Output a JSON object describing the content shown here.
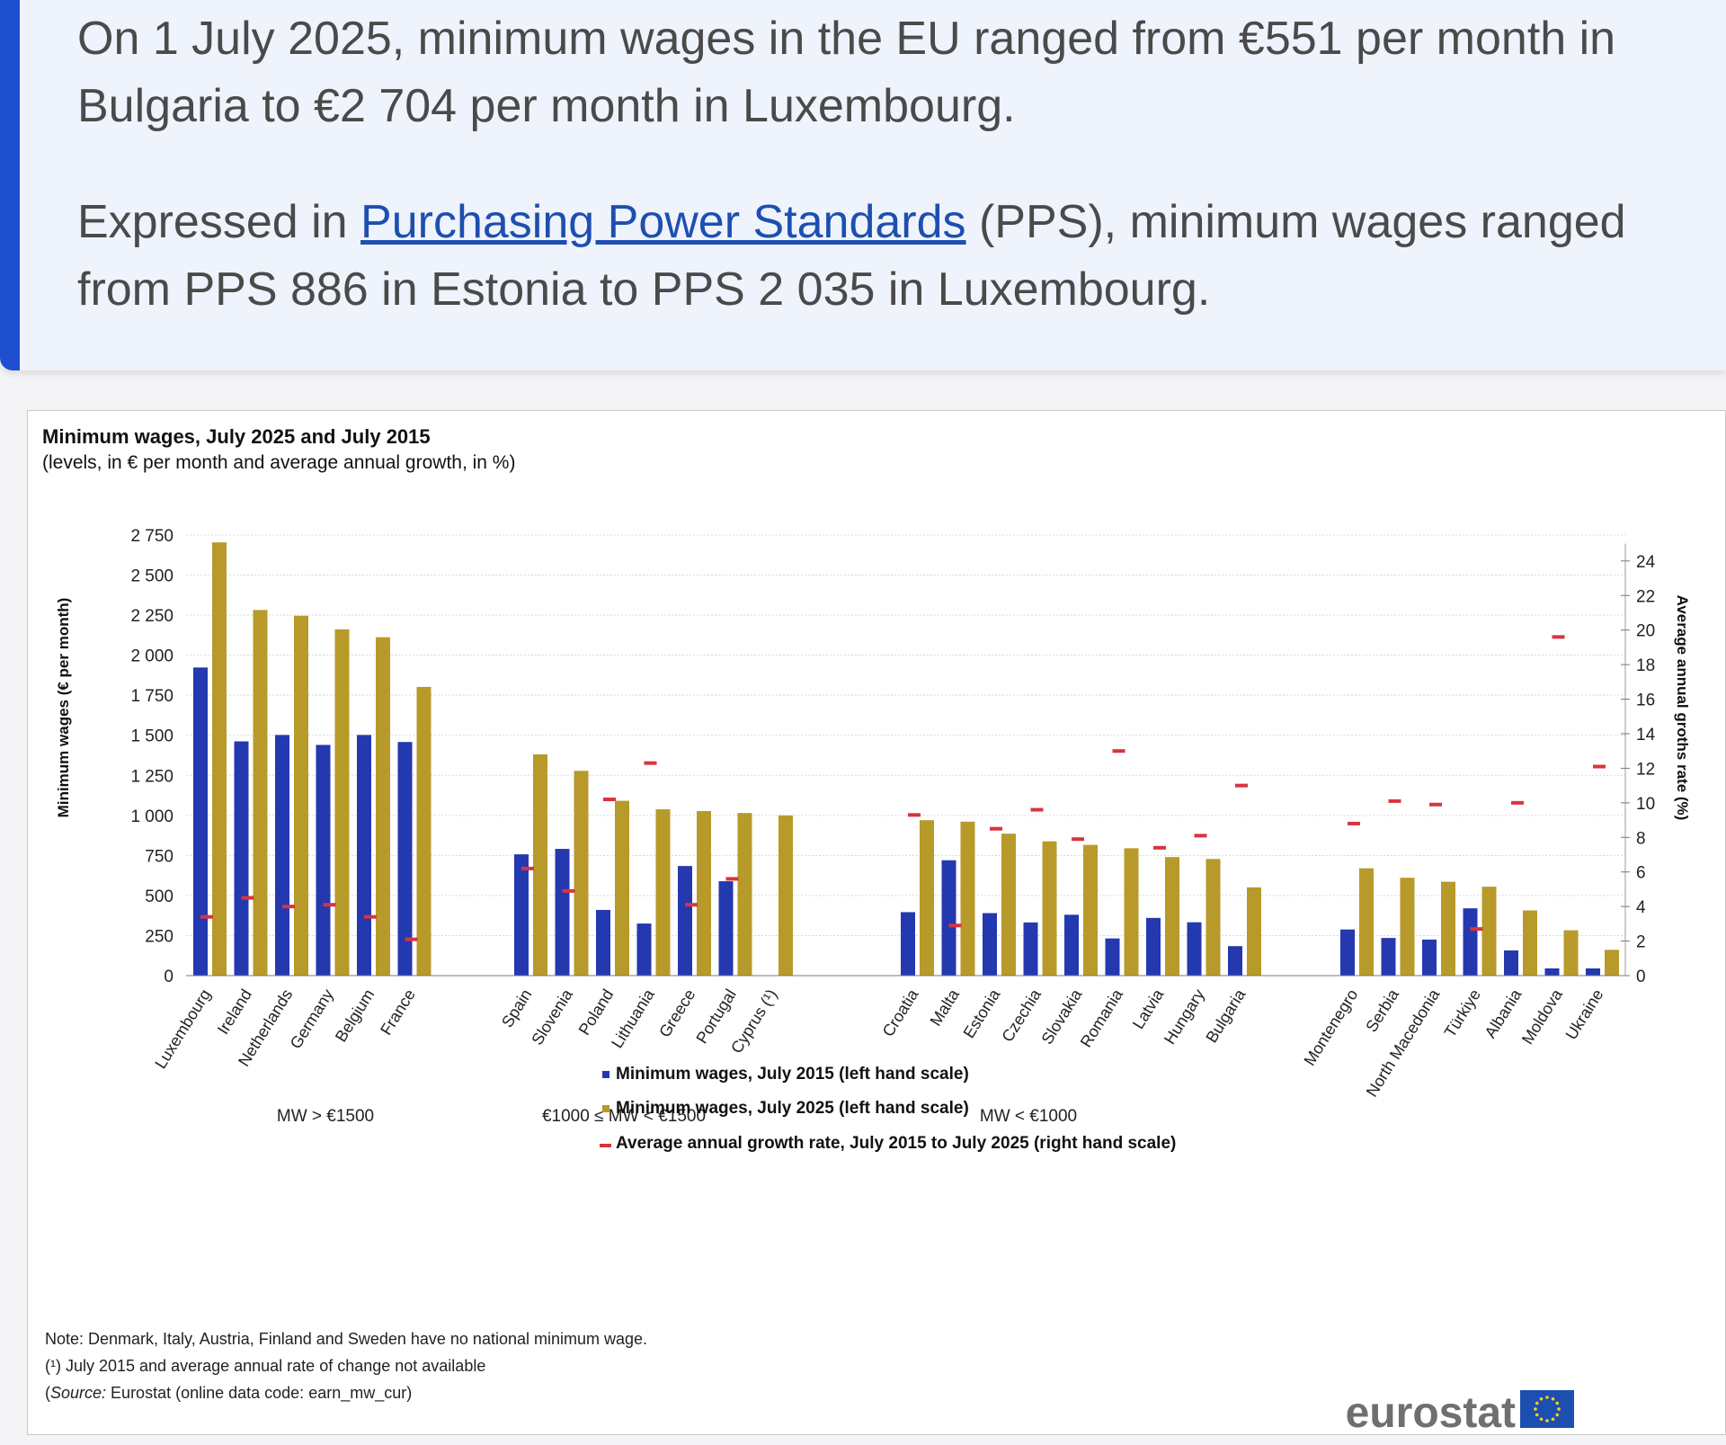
{
  "callout": {
    "p1": "On 1 July 2025, minimum wages in the EU ranged from €551 per month in Bulgaria to €2 704 per month in Luxembourg.",
    "p2_before": "Expressed in ",
    "p2_link": "Purchasing Power Standards",
    "p2_after": " (PPS), minimum wages ranged from PPS 886 in Estonia to PPS 2 035 in Luxembourg."
  },
  "chart_data": {
    "type": "bar",
    "title": "Minimum wages, July 2025 and July 2015",
    "subtitle": "(levels, in € per month and average annual growth, in %)",
    "ylabel": "Minimum wages (€ per month)",
    "y2label": "Average annual groths rate (%)",
    "ylim": [
      0,
      2750
    ],
    "y2lim": [
      0,
      25.5
    ],
    "yticks": [
      "0",
      "250",
      "500",
      "750",
      "1 000",
      "1 250",
      "1 500",
      "1 750",
      "2 000",
      "2 250",
      "2 500",
      "2 750"
    ],
    "yticks_values": [
      0,
      250,
      500,
      750,
      1000,
      1250,
      1500,
      1750,
      2000,
      2250,
      2500,
      2750
    ],
    "y2ticks": [
      0,
      2,
      4,
      6,
      8,
      10,
      12,
      14,
      16,
      18,
      20,
      22,
      24
    ],
    "grid": true,
    "legend_placement": "bottom-center",
    "colors": {
      "mw2015": "#2438b0",
      "mw2025": "#b79a2a",
      "growth": "#d8343f"
    },
    "groups": [
      {
        "label": "MW > €1500",
        "start": 0,
        "count": 6
      },
      {
        "label": "€1000 ≤ MW < €1500",
        "start": 6,
        "count": 7
      },
      {
        "label": "MW < €1000",
        "start": 13,
        "count": 9
      },
      {
        "label": "",
        "start": 22,
        "count": 7
      }
    ],
    "categories": [
      "Luxembourg",
      "Ireland",
      "Netherlands",
      "Germany",
      "Belgium",
      "France",
      "Spain",
      "Slovenia",
      "Poland",
      "Lithuania",
      "Greece",
      "Portugal",
      "Cyprus (¹)",
      "Croatia",
      "Malta",
      "Estonia",
      "Czechia",
      "Slovakia",
      "Romania",
      "Latvia",
      "Hungary",
      "Bulgaria",
      "Montenegro",
      "Serbia",
      "North Macedonia",
      "Türkiye",
      "Albania",
      "Moldova",
      "Ukraine"
    ],
    "series": [
      {
        "name": "Minimum wages, July 2015 (left hand scale)",
        "values": [
          1923,
          1462,
          1502,
          1440,
          1502,
          1458,
          757,
          791,
          410,
          325,
          684,
          589,
          null,
          396,
          720,
          390,
          332,
          380,
          232,
          360,
          333,
          184,
          288,
          235,
          225,
          420,
          157,
          45,
          45
        ]
      },
      {
        "name": "Minimum wages, July 2025 (left hand scale)",
        "values": [
          2704,
          2282,
          2246,
          2161,
          2112,
          1802,
          1381,
          1278,
          1091,
          1038,
          1027,
          1015,
          1000,
          970,
          961,
          886,
          838,
          816,
          795,
          740,
          728,
          551,
          670,
          611,
          586,
          555,
          407,
          283,
          161
        ]
      },
      {
        "name": "Average annual growth rate, July 2015 to July 2025 (right hand scale)",
        "values": [
          3.4,
          4.5,
          4.0,
          4.1,
          3.4,
          2.1,
          6.2,
          4.9,
          10.2,
          12.3,
          4.1,
          5.6,
          null,
          9.3,
          2.9,
          8.5,
          9.6,
          7.9,
          13.0,
          7.4,
          8.1,
          11.0,
          8.8,
          10.1,
          9.9,
          2.7,
          10.0,
          19.6,
          12.1
        ]
      }
    ]
  },
  "notes": {
    "line1": "Note: Denmark, Italy,  Austria, Finland and Sweden have no national minimum wage.",
    "line2": "(¹) July 2015 and average annual rate of change not available",
    "line3_prefix": "(",
    "line3_source": "Source:",
    "line3_rest": " Eurostat (online data code: earn_mw_cur)"
  },
  "logo": {
    "text": "eurostat"
  }
}
